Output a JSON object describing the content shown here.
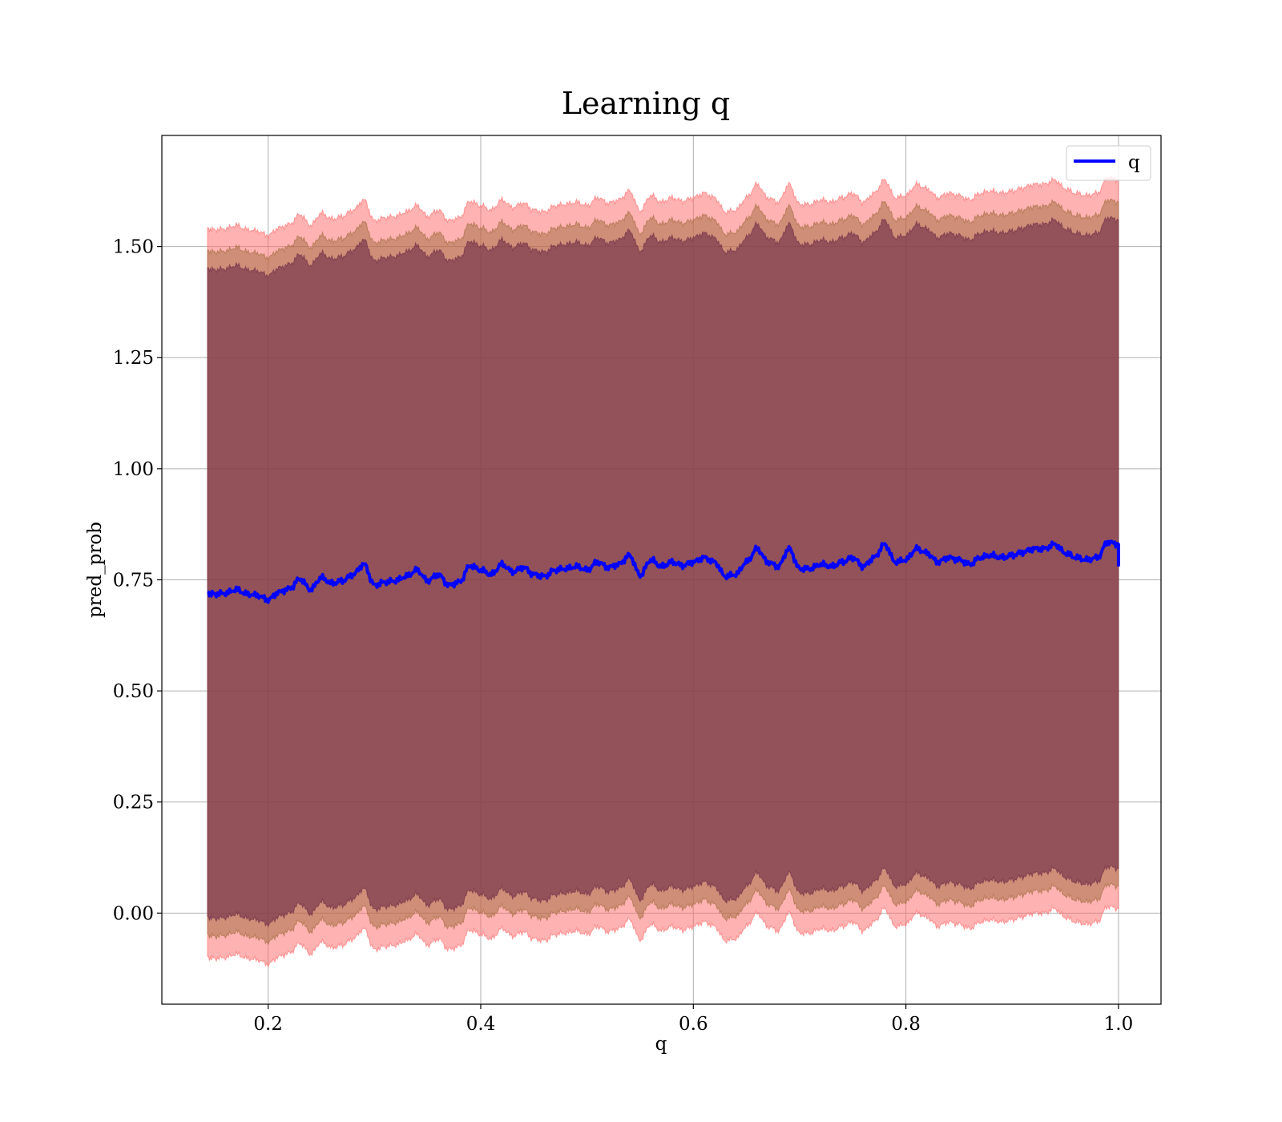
{
  "chart_data": {
    "type": "line",
    "title": "Learning q",
    "xlabel": "q",
    "ylabel": "pred_prob",
    "xlim": [
      0.1,
      1.04
    ],
    "ylim": [
      -0.205,
      1.75
    ],
    "x_ticks": [
      0.2,
      0.4,
      0.6,
      0.8,
      1.0
    ],
    "x_tick_labels": [
      "0.2",
      "0.4",
      "0.6",
      "0.8",
      "1.0"
    ],
    "y_ticks": [
      0.0,
      0.25,
      0.5,
      0.75,
      1.0,
      1.25,
      1.5
    ],
    "y_tick_labels": [
      "0.00",
      "0.25",
      "0.50",
      "0.75",
      "1.00",
      "1.25",
      "1.50"
    ],
    "grid": true,
    "legend_position": "top-right",
    "colors": {
      "line": "#0000ff",
      "band_outer": "#ff6666",
      "band_middle": "#a06a3c",
      "band_inner": "#6b2a46",
      "grid": "#b0b0b0"
    },
    "band_half_widths": [
      0.82,
      0.77,
      0.73
    ],
    "band_opacities": [
      0.5,
      0.5,
      0.6
    ],
    "series": [
      {
        "name": "q",
        "x": [
          0.143,
          0.15,
          0.16,
          0.17,
          0.18,
          0.19,
          0.2,
          0.21,
          0.22,
          0.23,
          0.24,
          0.25,
          0.26,
          0.27,
          0.28,
          0.29,
          0.3,
          0.31,
          0.32,
          0.33,
          0.34,
          0.35,
          0.36,
          0.37,
          0.38,
          0.39,
          0.4,
          0.41,
          0.42,
          0.43,
          0.44,
          0.45,
          0.46,
          0.47,
          0.48,
          0.49,
          0.5,
          0.51,
          0.52,
          0.53,
          0.54,
          0.55,
          0.56,
          0.57,
          0.58,
          0.59,
          0.6,
          0.61,
          0.62,
          0.63,
          0.64,
          0.65,
          0.66,
          0.67,
          0.68,
          0.69,
          0.7,
          0.71,
          0.72,
          0.73,
          0.74,
          0.75,
          0.76,
          0.77,
          0.78,
          0.79,
          0.8,
          0.81,
          0.82,
          0.83,
          0.84,
          0.85,
          0.86,
          0.87,
          0.88,
          0.89,
          0.9,
          0.91,
          0.92,
          0.93,
          0.94,
          0.95,
          0.96,
          0.97,
          0.98,
          0.99,
          1.0
        ],
        "values": [
          0.72,
          0.718,
          0.72,
          0.728,
          0.718,
          0.715,
          0.705,
          0.722,
          0.73,
          0.752,
          0.728,
          0.755,
          0.742,
          0.748,
          0.762,
          0.785,
          0.738,
          0.745,
          0.748,
          0.758,
          0.772,
          0.748,
          0.762,
          0.738,
          0.745,
          0.782,
          0.772,
          0.762,
          0.785,
          0.768,
          0.778,
          0.762,
          0.758,
          0.772,
          0.775,
          0.78,
          0.772,
          0.79,
          0.778,
          0.785,
          0.805,
          0.76,
          0.795,
          0.78,
          0.79,
          0.782,
          0.79,
          0.8,
          0.79,
          0.758,
          0.762,
          0.79,
          0.82,
          0.79,
          0.78,
          0.82,
          0.775,
          0.775,
          0.785,
          0.78,
          0.79,
          0.8,
          0.78,
          0.8,
          0.83,
          0.79,
          0.795,
          0.82,
          0.81,
          0.79,
          0.8,
          0.795,
          0.785,
          0.8,
          0.805,
          0.8,
          0.805,
          0.812,
          0.82,
          0.82,
          0.83,
          0.81,
          0.8,
          0.795,
          0.8,
          0.835,
          0.83
        ]
      }
    ]
  }
}
